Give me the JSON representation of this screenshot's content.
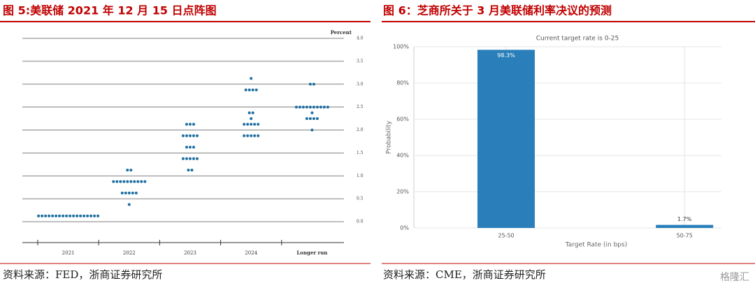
{
  "chart_data": [
    {
      "type": "dot",
      "title": "图 5:美联储 2021 年 12 月 15 日点阵图",
      "source": "资料来源：FED，浙商证券研究所",
      "y_label": "Percent",
      "color": "#1f6fa0",
      "categories": [
        "2021",
        "2022",
        "2023",
        "2024",
        "Longer run"
      ],
      "dots": [
        [
          0.125,
          0.125,
          0.125,
          0.125,
          0.125,
          0.125,
          0.125,
          0.125,
          0.125,
          0.125,
          0.125,
          0.125,
          0.125,
          0.125,
          0.125,
          0.125,
          0.125,
          0.125
        ],
        [
          1.125,
          1.125,
          0.875,
          0.875,
          0.875,
          0.875,
          0.875,
          0.875,
          0.875,
          0.875,
          0.875,
          0.875,
          0.625,
          0.625,
          0.625,
          0.625,
          0.625,
          0.375
        ],
        [
          2.125,
          2.125,
          2.125,
          1.875,
          1.875,
          1.875,
          1.875,
          1.875,
          1.625,
          1.625,
          1.625,
          1.375,
          1.375,
          1.375,
          1.375,
          1.375,
          1.125,
          1.125
        ],
        [
          3.125,
          2.875,
          2.875,
          2.875,
          2.875,
          2.375,
          2.375,
          2.25,
          2.125,
          2.125,
          2.125,
          2.125,
          2.125,
          1.875,
          1.875,
          1.875,
          1.875,
          1.875
        ],
        [
          3.0,
          3.0,
          2.5,
          2.5,
          2.5,
          2.5,
          2.5,
          2.5,
          2.5,
          2.5,
          2.5,
          2.5,
          2.375,
          2.25,
          2.25,
          2.25,
          2.25,
          2.0
        ]
      ],
      "ylim": [
        0,
        4
      ],
      "yticks": [
        {
          "value": 0,
          "label": "0.0"
        },
        {
          "value": 0.5,
          "label": "0.5"
        },
        {
          "value": 1,
          "label": "1.0"
        },
        {
          "value": 1.5,
          "label": "1.5"
        },
        {
          "value": 2,
          "label": "2.0"
        },
        {
          "value": 2.5,
          "label": "2.5"
        },
        {
          "value": 3,
          "label": "3.0"
        },
        {
          "value": 3.5,
          "label": "3.5"
        },
        {
          "value": 4,
          "label": "4.0"
        }
      ],
      "grid": true
    },
    {
      "type": "bar",
      "title": "图 6：芝商所关于 3 月美联储利率决议的预测",
      "source": "资料来源：CME，浙商证券研究所",
      "subtitle": "Current target rate is 0-25",
      "x_label": "Target Rate (in bps)",
      "y_label": "Probability",
      "color": "#2a7fba",
      "categories": [
        "25-50",
        "50-75"
      ],
      "values": [
        98.3,
        1.7
      ],
      "value_labels": [
        "98.3%",
        "1.7%"
      ],
      "ylim": [
        0,
        100
      ],
      "yticks": [
        {
          "value": 0,
          "label": "0%"
        },
        {
          "value": 20,
          "label": "20%"
        },
        {
          "value": 40,
          "label": "40%"
        },
        {
          "value": 60,
          "label": "60%"
        },
        {
          "value": 80,
          "label": "80%"
        },
        {
          "value": 100,
          "label": "100%"
        }
      ],
      "grid": true
    }
  ],
  "watermark": "格隆汇"
}
